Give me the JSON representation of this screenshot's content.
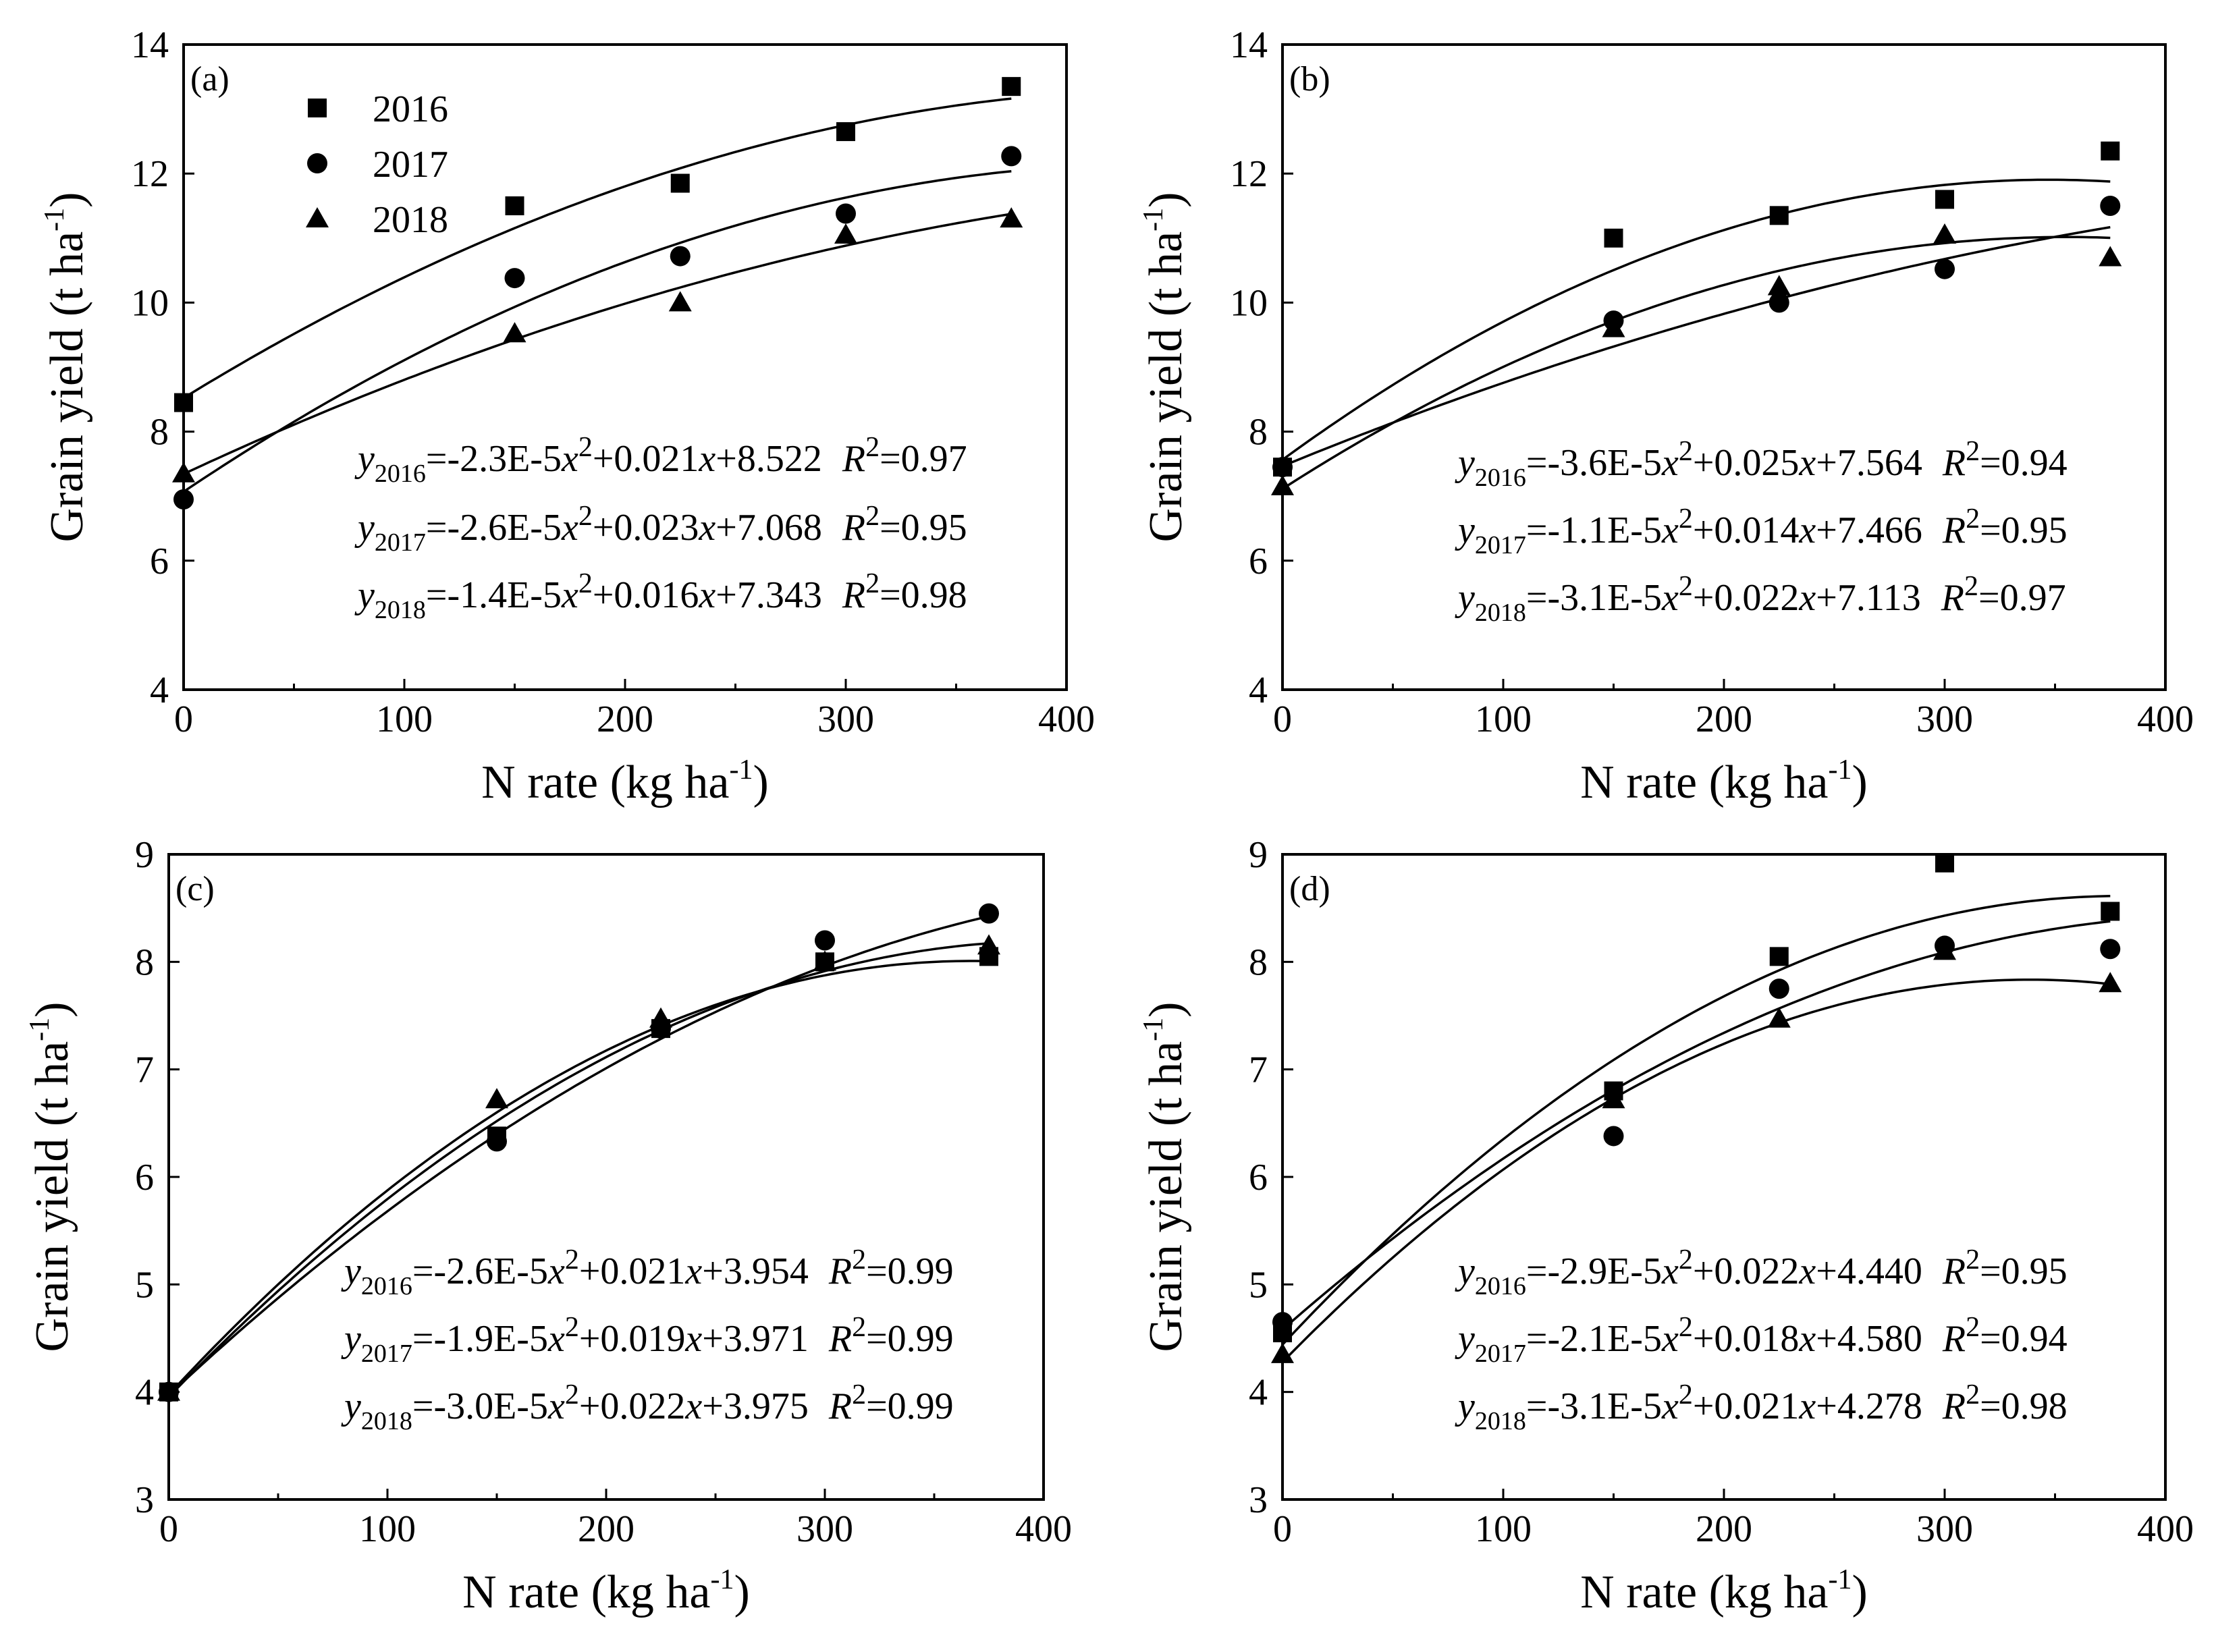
{
  "chart_data": [
    {
      "type": "scatter",
      "panel_label": "(a)",
      "xlabel": "N rate (kg ha",
      "xlabel_sup": "-1",
      "xlabel_end": ")",
      "ylabel": "Grain yield (t ha",
      "ylabel_sup": "-1",
      "ylabel_end": ")",
      "xlim": [
        0,
        400
      ],
      "ylim": [
        4,
        14
      ],
      "xticks": [
        0,
        100,
        200,
        300,
        400
      ],
      "yticks": [
        4,
        6,
        8,
        10,
        12,
        14
      ],
      "legend": [
        "2016",
        "2017",
        "2018"
      ],
      "series": [
        {
          "name": "2016",
          "marker": "square",
          "x": [
            0,
            150,
            225,
            300,
            375
          ],
          "y": [
            8.45,
            11.5,
            11.85,
            12.65,
            13.35
          ],
          "fit": [
            -2.3e-05,
            0.021,
            8.522
          ],
          "fit_xmax": 375
        },
        {
          "name": "2017",
          "marker": "circle",
          "x": [
            0,
            150,
            225,
            300,
            375
          ],
          "y": [
            6.95,
            10.38,
            10.72,
            11.38,
            12.27
          ],
          "fit": [
            -2.6e-05,
            0.023,
            7.068
          ],
          "fit_xmax": 375
        },
        {
          "name": "2018",
          "marker": "triangle",
          "x": [
            0,
            150,
            225,
            300,
            375
          ],
          "y": [
            7.35,
            9.52,
            10.0,
            11.05,
            11.3
          ],
          "fit": [
            -1.4e-05,
            0.016,
            7.343
          ],
          "fit_xmax": 375
        }
      ],
      "equations": [
        {
          "y": "y",
          "sub": "2016",
          "a": "=-2.3E-5",
          "x1": "x",
          "pow": "2",
          "b": "+0.021",
          "x2": "x",
          "c": "+8.522",
          "r": "R",
          "rpow": "2",
          "rval": "=0.97"
        },
        {
          "y": "y",
          "sub": "2017",
          "a": "=-2.6E-5",
          "x1": "x",
          "pow": "2",
          "b": "+0.023",
          "x2": "x",
          "c": "+7.068",
          "r": "R",
          "rpow": "2",
          "rval": "=0.95"
        },
        {
          "y": "y",
          "sub": "2018",
          "a": "=-1.4E-5",
          "x1": "x",
          "pow": "2",
          "b": "+0.016",
          "x2": "x",
          "c": "+7.343",
          "r": "R",
          "rpow": "2",
          "rval": "=0.98"
        }
      ]
    },
    {
      "type": "scatter",
      "panel_label": "(b)",
      "xlabel": "N rate (kg ha",
      "xlabel_sup": "-1",
      "xlabel_end": ")",
      "ylabel": "Grain yield (t ha",
      "ylabel_sup": "-1",
      "ylabel_end": ")",
      "xlim": [
        0,
        400
      ],
      "ylim": [
        4,
        14
      ],
      "xticks": [
        0,
        100,
        200,
        300,
        400
      ],
      "yticks": [
        4,
        6,
        8,
        10,
        12,
        14
      ],
      "series": [
        {
          "name": "2016",
          "marker": "square",
          "x": [
            0,
            150,
            225,
            300,
            375
          ],
          "y": [
            7.45,
            11.0,
            11.35,
            11.6,
            12.35
          ],
          "fit": [
            -3.6e-05,
            0.025,
            7.564
          ],
          "fit_xmax": 375
        },
        {
          "name": "2017",
          "marker": "circle",
          "x": [
            0,
            150,
            225,
            300,
            375
          ],
          "y": [
            7.45,
            9.72,
            10.0,
            10.52,
            11.5
          ],
          "fit": [
            -1.1e-05,
            0.014,
            7.466
          ],
          "fit_xmax": 375
        },
        {
          "name": "2018",
          "marker": "triangle",
          "x": [
            0,
            150,
            225,
            300,
            375
          ],
          "y": [
            7.15,
            9.6,
            10.25,
            11.05,
            10.7
          ],
          "fit": [
            -3.1e-05,
            0.022,
            7.113
          ],
          "fit_xmax": 375
        }
      ],
      "equations": [
        {
          "y": "y",
          "sub": "2016",
          "a": "=-3.6E-5",
          "x1": "x",
          "pow": "2",
          "b": "+0.025",
          "x2": "x",
          "c": "+7.564",
          "r": "R",
          "rpow": "2",
          "rval": "=0.94"
        },
        {
          "y": "y",
          "sub": "2017",
          "a": "=-1.1E-5",
          "x1": "x",
          "pow": "2",
          "b": "+0.014",
          "x2": "x",
          "c": "+7.466",
          "r": "R",
          "rpow": "2",
          "rval": "=0.95"
        },
        {
          "y": "y",
          "sub": "2018",
          "a": "=-3.1E-5",
          "x1": "x",
          "pow": "2",
          "b": "+0.022",
          "x2": "x",
          "c": "+7.113",
          "r": "R",
          "rpow": "2",
          "rval": "=0.97"
        }
      ]
    },
    {
      "type": "scatter",
      "panel_label": "(c)",
      "xlabel": "N rate (kg ha",
      "xlabel_sup": "-1",
      "xlabel_end": ")",
      "ylabel": "Grain yield (t ha",
      "ylabel_sup": "-1",
      "ylabel_end": ")",
      "xlim": [
        0,
        400
      ],
      "ylim": [
        3,
        9
      ],
      "xticks": [
        0,
        100,
        200,
        300,
        400
      ],
      "yticks": [
        3,
        4,
        5,
        6,
        7,
        8,
        9
      ],
      "series": [
        {
          "name": "2016",
          "marker": "square",
          "x": [
            0,
            150,
            225,
            300,
            375
          ],
          "y": [
            4.0,
            6.38,
            7.38,
            8.0,
            8.05
          ],
          "fit": [
            -2.6e-05,
            0.021,
            3.954
          ],
          "fit_xmax": 375
        },
        {
          "name": "2017",
          "marker": "circle",
          "x": [
            0,
            150,
            225,
            300,
            375
          ],
          "y": [
            4.0,
            6.33,
            7.38,
            8.2,
            8.45
          ],
          "fit": [
            -1.9e-05,
            0.019,
            3.971
          ],
          "fit_xmax": 375
        },
        {
          "name": "2018",
          "marker": "triangle",
          "x": [
            0,
            150,
            225,
            300,
            375
          ],
          "y": [
            4.0,
            6.72,
            7.47,
            8.0,
            8.15
          ],
          "fit": [
            -3e-05,
            0.022,
            3.975
          ],
          "fit_xmax": 375
        }
      ],
      "equations": [
        {
          "y": "y",
          "sub": "2016",
          "a": "=-2.6E-5",
          "x1": "x",
          "pow": "2",
          "b": "+0.021",
          "x2": "x",
          "c": "+3.954",
          "r": "R",
          "rpow": "2",
          "rval": "=0.99"
        },
        {
          "y": "y",
          "sub": "2017",
          "a": "=-1.9E-5",
          "x1": "x",
          "pow": "2",
          "b": "+0.019",
          "x2": "x",
          "c": "+3.971",
          "r": "R",
          "rpow": "2",
          "rval": "=0.99"
        },
        {
          "y": "y",
          "sub": "2018",
          "a": "=-3.0E-5",
          "x1": "x",
          "pow": "2",
          "b": "+0.022",
          "x2": "x",
          "c": "+3.975",
          "r": "R",
          "rpow": "2",
          "rval": "=0.99"
        }
      ]
    },
    {
      "type": "scatter",
      "panel_label": "(d)",
      "xlabel": "N rate (kg ha",
      "xlabel_sup": "-1",
      "xlabel_end": ")",
      "ylabel": "Grain yield (t ha",
      "ylabel_sup": "-1",
      "ylabel_end": ")",
      "xlim": [
        0,
        400
      ],
      "ylim": [
        3,
        9
      ],
      "xticks": [
        0,
        100,
        200,
        300,
        400
      ],
      "yticks": [
        3,
        4,
        5,
        6,
        7,
        8,
        9
      ],
      "series": [
        {
          "name": "2016",
          "marker": "square",
          "x": [
            0,
            150,
            225,
            300,
            375
          ],
          "y": [
            4.55,
            6.8,
            8.05,
            8.92,
            8.47
          ],
          "fit": [
            -2.9e-05,
            0.022,
            4.44
          ],
          "fit_xmax": 375
        },
        {
          "name": "2017",
          "marker": "circle",
          "x": [
            0,
            150,
            225,
            300,
            375
          ],
          "y": [
            4.65,
            6.38,
            7.75,
            8.15,
            8.12
          ],
          "fit": [
            -2.1e-05,
            0.018,
            4.58
          ],
          "fit_xmax": 375
        },
        {
          "name": "2018",
          "marker": "triangle",
          "x": [
            0,
            150,
            225,
            300,
            375
          ],
          "y": [
            4.35,
            6.72,
            7.47,
            8.1,
            7.8
          ],
          "fit": [
            -3.1e-05,
            0.021,
            4.278
          ],
          "fit_xmax": 375
        }
      ],
      "equations": [
        {
          "y": "y",
          "sub": "2016",
          "a": "=-2.9E-5",
          "x1": "x",
          "pow": "2",
          "b": "+0.022",
          "x2": "x",
          "c": "+4.440",
          "r": "R",
          "rpow": "2",
          "rval": "=0.95"
        },
        {
          "y": "y",
          "sub": "2017",
          "a": "=-2.1E-5",
          "x1": "x",
          "pow": "2",
          "b": "+0.018",
          "x2": "x",
          "c": "+4.580",
          "r": "R",
          "rpow": "2",
          "rval": "=0.94"
        },
        {
          "y": "y",
          "sub": "2018",
          "a": "=-3.1E-5",
          "x1": "x",
          "pow": "2",
          "b": "+0.021",
          "x2": "x",
          "c": "+4.278",
          "r": "R",
          "rpow": "2",
          "rval": "=0.98"
        }
      ]
    }
  ]
}
